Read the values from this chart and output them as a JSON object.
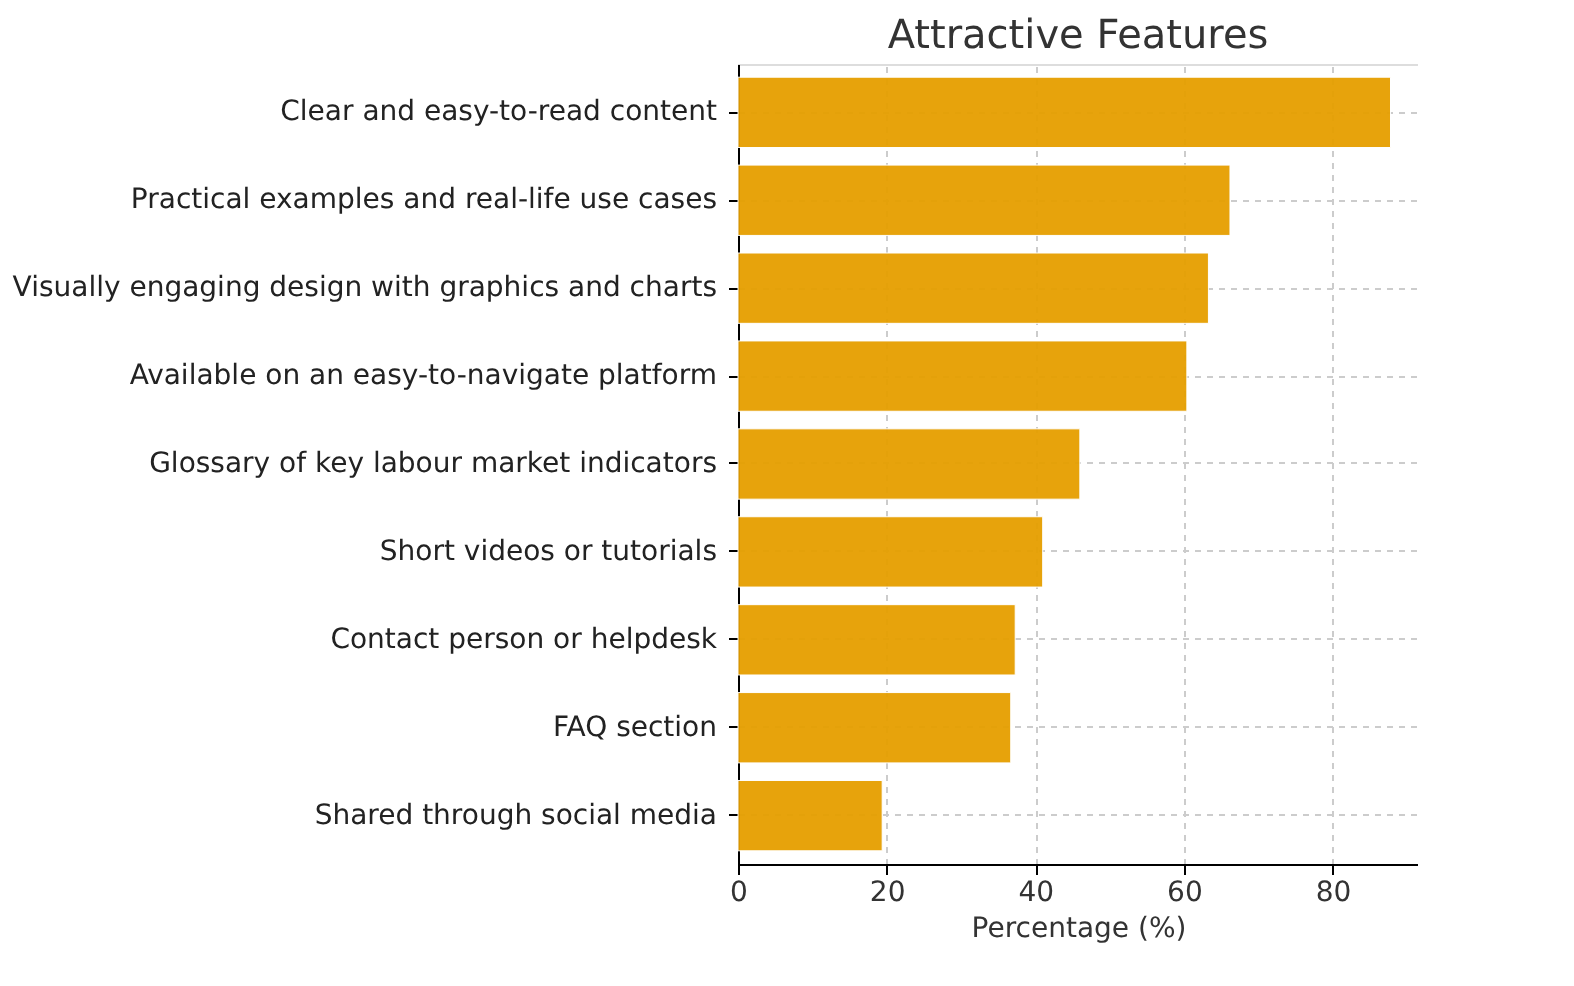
{
  "chart_data": {
    "type": "bar",
    "orientation": "horizontal",
    "title": "Attractive Features",
    "xlabel": "Percentage (%)",
    "categories": [
      "Clear and easy-to-read content",
      "Practical examples and real-life use cases",
      "Visually engaging design with graphics and charts",
      "Available on an easy-to-navigate platform",
      "Glossary of key labour market indicators",
      "Short videos or tutorials",
      "Contact person or helpdesk",
      "FAQ section",
      "Shared through social media"
    ],
    "values": [
      87.8,
      66.2,
      63.3,
      60.4,
      46.0,
      41.0,
      37.3,
      36.7,
      19.4
    ],
    "color": "#e69f00",
    "xlim": [
      0,
      91.5
    ],
    "xticks": [
      0,
      20,
      40,
      60,
      80
    ],
    "grid": true
  }
}
